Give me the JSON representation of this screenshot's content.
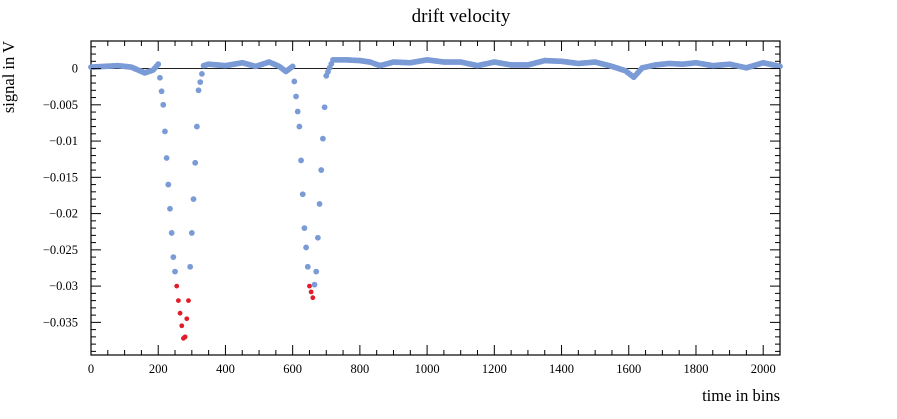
{
  "chart_data": {
    "type": "scatter",
    "title": "drift velocity",
    "xlabel": "time in bins",
    "ylabel": "signal in V",
    "xlim": [
      0,
      2050
    ],
    "ylim": [
      -0.0395,
      0.0038
    ],
    "x_ticks": [
      0,
      200,
      400,
      600,
      800,
      1000,
      1200,
      1400,
      1600,
      1800,
      2000
    ],
    "x_tick_labels": [
      "0",
      "200",
      "400",
      "600",
      "800",
      "1000",
      "1200",
      "1400",
      "1600",
      "1800",
      "2000"
    ],
    "y_ticks": [
      0,
      -0.005,
      -0.01,
      -0.015,
      -0.02,
      -0.025,
      -0.03,
      -0.035
    ],
    "y_tick_labels": [
      "0",
      "−0.005",
      "−0.01",
      "−0.015",
      "−0.02",
      "−0.025",
      "−0.03",
      "−0.035"
    ],
    "colors": {
      "series": "#7b9bd6",
      "highlight": "#e11d2a",
      "axis": "#000000"
    },
    "series": [
      {
        "name": "signal",
        "color": "#7b9bd6",
        "x": [
          0,
          40,
          80,
          120,
          160,
          185,
          200,
          215,
          230,
          245,
          260,
          275,
          280,
          290,
          305,
          320,
          335,
          350,
          400,
          450,
          490,
          530,
          560,
          580,
          600,
          620,
          635,
          650,
          660,
          670,
          685,
          700,
          720,
          760,
          800,
          830,
          860,
          900,
          950,
          1000,
          1050,
          1100,
          1150,
          1200,
          1250,
          1300,
          1350,
          1400,
          1450,
          1500,
          1550,
          1590,
          1615,
          1640,
          1680,
          1720,
          1760,
          1800,
          1850,
          1900,
          1950,
          2000,
          2050
        ],
        "y": [
          0.0002,
          0.0003,
          0.0004,
          0.0002,
          -0.0006,
          -0.0002,
          0.0006,
          -0.005,
          -0.016,
          -0.026,
          -0.032,
          -0.0372,
          -0.037,
          -0.032,
          -0.018,
          -0.003,
          0.0004,
          0.0006,
          0.0004,
          0.0008,
          0.0003,
          0.0009,
          0.0003,
          -0.0004,
          0.0003,
          -0.008,
          -0.022,
          -0.03,
          -0.0316,
          -0.028,
          -0.014,
          -0.001,
          0.0012,
          0.0012,
          0.0011,
          0.0009,
          0.0004,
          0.0009,
          0.0008,
          0.0012,
          0.0009,
          0.0009,
          0.0004,
          0.0009,
          0.0005,
          0.0005,
          0.0011,
          0.001,
          0.0007,
          0.0009,
          0.0003,
          -0.0003,
          -0.0012,
          0.0001,
          0.0005,
          0.0007,
          0.0006,
          0.0008,
          0.0004,
          0.0006,
          0.0001,
          0.0008,
          0.0003
        ]
      }
    ],
    "highlight_threshold": -0.03,
    "sample_step": 5
  }
}
